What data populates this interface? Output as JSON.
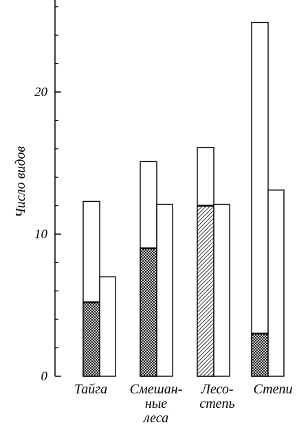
{
  "chart_data": {
    "type": "bar",
    "ylabel": "Число видов",
    "ylim": [
      0,
      26
    ],
    "y_tick_labels": [
      {
        "value": 0,
        "label": "0"
      },
      {
        "value": 10,
        "label": "10"
      },
      {
        "value": 20,
        "label": "20"
      }
    ],
    "y_minor_tick_step": 2,
    "categories": [
      {
        "label_lines": [
          "Тайга"
        ]
      },
      {
        "label_lines": [
          "Смешан-",
          "ные",
          "леса"
        ]
      },
      {
        "label_lines": [
          "Лесо-",
          "степь"
        ]
      },
      {
        "label_lines": [
          "Степи"
        ]
      }
    ],
    "bars": [
      {
        "category": 0,
        "total": 12.3,
        "shaded": 5.2,
        "second": 7.0
      },
      {
        "category": 1,
        "total": 15.1,
        "shaded": 9.0,
        "second": 12.1
      },
      {
        "category": 2,
        "total": 16.1,
        "shaded": 12.0,
        "second": 12.1
      },
      {
        "category": 3,
        "total": 24.9,
        "shaded": 3.0,
        "second": 13.1
      }
    ],
    "grid": false,
    "legend": "none"
  }
}
